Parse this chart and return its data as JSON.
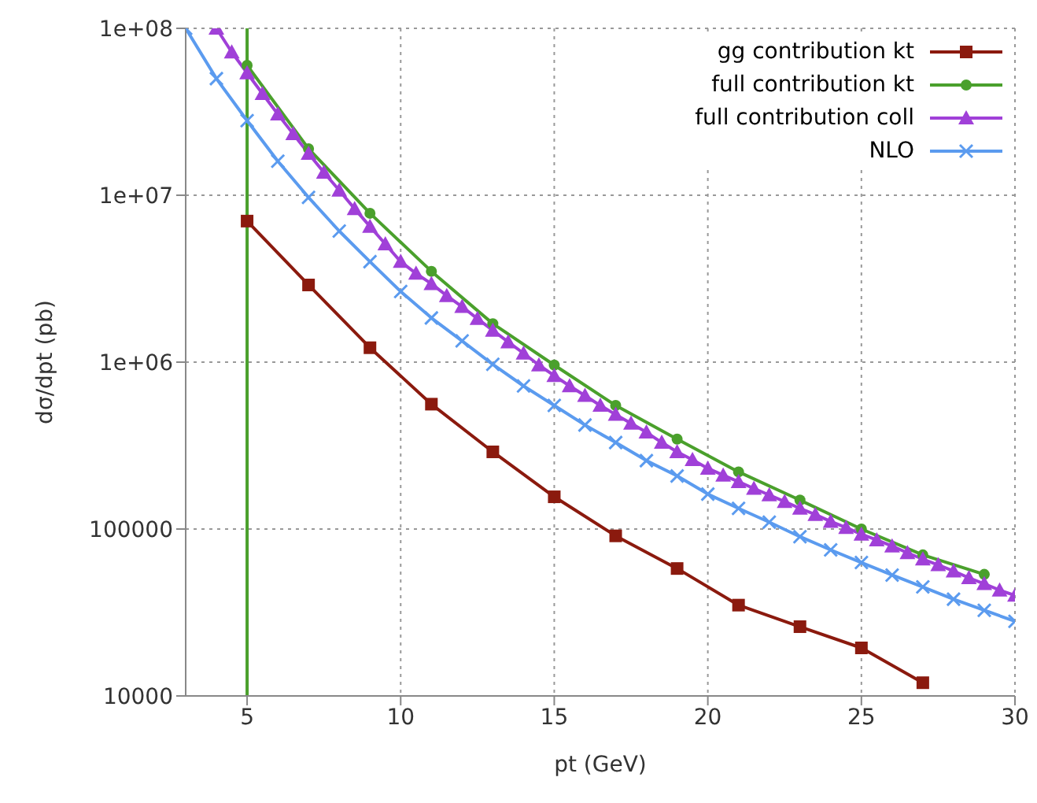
{
  "chart_data": {
    "type": "line",
    "xlabel": "pt (GeV)",
    "ylabel": "dσ/dpt (pb)",
    "log": "y",
    "grid": true,
    "legend": "top right",
    "line_style": "solid",
    "xlim": [
      3,
      30
    ],
    "xticks": [
      5,
      10,
      15,
      20,
      25,
      30
    ],
    "ylim": [
      10000,
      100000000
    ],
    "yticks": [
      {
        "value": 10000,
        "label": "10000"
      },
      {
        "value": 100000,
        "label": "100000"
      },
      {
        "value": 1000000,
        "label": "1e+06"
      },
      {
        "value": 10000000,
        "label": "1e+07"
      },
      {
        "value": 100000000,
        "label": "1e+08"
      }
    ],
    "ref_lines": [
      {
        "axis": "x",
        "value": 5,
        "color": "#4aa02c"
      }
    ],
    "series": [
      {
        "name": "gg contribution kt",
        "color": "#8b1a0e",
        "marker": "square",
        "x": [
          5,
          7,
          9,
          11,
          13,
          15,
          17,
          19,
          21,
          23,
          25,
          27
        ],
        "values": [
          7000000,
          2900000,
          1220000,
          560000,
          290000,
          156000,
          91000,
          58000,
          35000,
          26000,
          19400,
          12000
        ]
      },
      {
        "name": "full contribution kt",
        "color": "#4aa02c",
        "marker": "circle",
        "x": [
          5,
          7,
          9,
          11,
          13,
          15,
          17,
          19,
          21,
          23,
          25,
          27,
          29
        ],
        "values": [
          60000000,
          19000000,
          7800000,
          3500000,
          1700000,
          960000,
          550000,
          346000,
          220000,
          149000,
          100000,
          70000,
          53500
        ]
      },
      {
        "name": "full contribution coll",
        "color": "#a040d8",
        "marker": "triangle",
        "x": [
          4,
          4.5,
          5,
          5.5,
          6,
          6.5,
          7,
          7.5,
          8,
          8.5,
          9,
          9.5,
          10,
          10.5,
          11,
          11.5,
          12,
          12.5,
          13,
          13.5,
          14,
          14.5,
          15,
          15.5,
          16,
          16.5,
          17,
          17.5,
          18,
          18.5,
          19,
          19.5,
          20,
          20.5,
          21,
          21.5,
          22,
          22.5,
          23,
          23.5,
          24,
          24.5,
          25,
          25.5,
          26,
          26.5,
          27,
          27.5,
          28,
          28.5,
          29,
          29.5,
          30
        ],
        "values": [
          100000000,
          72000000,
          54000000,
          40600000,
          30600000,
          23300000,
          17800000,
          13700000,
          10700000,
          8300000,
          6500000,
          5100000,
          4000000,
          3400000,
          2950000,
          2500000,
          2150000,
          1820000,
          1550000,
          1320000,
          1130000,
          960000,
          830000,
          720000,
          630000,
          550000,
          485000,
          430000,
          380000,
          330000,
          290000,
          260000,
          231000,
          210000,
          192000,
          175000,
          160000,
          146000,
          133000,
          122000,
          111000,
          102000,
          93000,
          86000,
          79000,
          72000,
          66000,
          61000,
          56000,
          51000,
          47000,
          43000,
          40000
        ]
      },
      {
        "name": "NLO",
        "color": "#5b9bef",
        "marker": "cross",
        "x": [
          3,
          4,
          5,
          6,
          7,
          8,
          9,
          10,
          11,
          12,
          13,
          14,
          15,
          16,
          17,
          18,
          19,
          20,
          21,
          22,
          23,
          24,
          25,
          26,
          27,
          28,
          29,
          30
        ],
        "values": [
          100000000,
          50000000,
          28000000,
          16000000,
          9700000,
          6100000,
          4000000,
          2650000,
          1840000,
          1340000,
          970000,
          720000,
          550000,
          420000,
          330000,
          257000,
          208000,
          162000,
          133000,
          110000,
          90000,
          75000,
          63000,
          53000,
          45000,
          38000,
          32600,
          28000
        ]
      }
    ]
  }
}
